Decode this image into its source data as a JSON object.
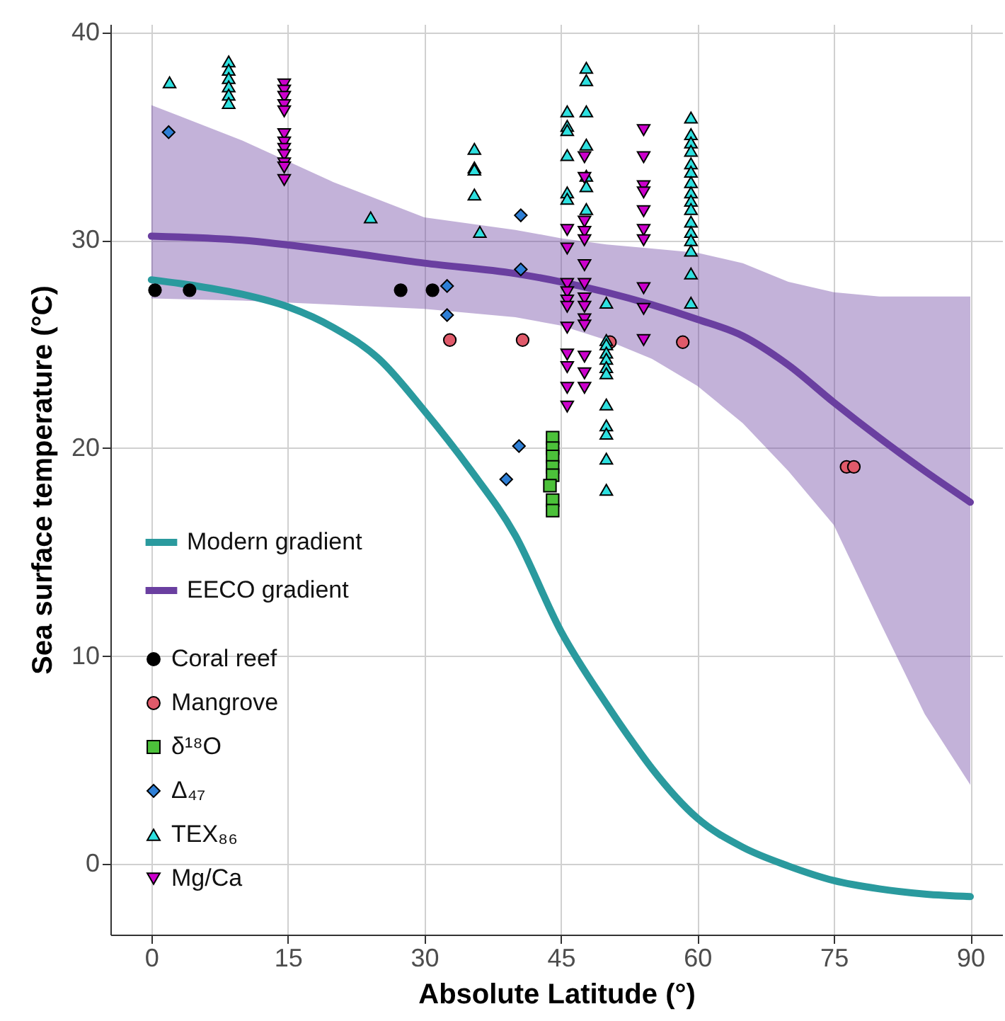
{
  "chart_data": {
    "type": "scatter",
    "xlabel": "Absolute Latitude (°)",
    "ylabel": "Sea surface temperature (°C)",
    "xlim": [
      -4.5,
      93.5
    ],
    "ylim": [
      -3.4,
      40.4
    ],
    "xticks": [
      0,
      15,
      30,
      45,
      60,
      75,
      90
    ],
    "yticks": [
      0,
      10,
      20,
      30,
      40
    ],
    "grid": true,
    "legend": "left",
    "series": [
      {
        "name": "Modern gradient",
        "type": "line",
        "color": "#2a9a9e",
        "x": [
          0,
          5,
          10,
          15,
          20,
          25,
          30,
          35,
          40,
          45,
          50,
          52.5,
          55,
          60,
          65,
          70,
          75,
          80,
          85,
          90
        ],
        "values": [
          28.1,
          27.8,
          27.4,
          26.8,
          25.8,
          24.3,
          21.8,
          19.0,
          15.8,
          11.2,
          7.7,
          6.1,
          4.6,
          2.2,
          0.8,
          -0.1,
          -0.8,
          -1.2,
          -1.45,
          -1.57
        ]
      },
      {
        "name": "EECO gradient",
        "type": "line",
        "color": "#6a3fa0",
        "x": [
          0,
          10,
          20,
          30,
          40,
          45,
          50,
          55,
          60,
          65,
          70,
          75,
          80,
          85,
          90
        ],
        "values": [
          30.2,
          30.0,
          29.5,
          28.9,
          28.4,
          28.0,
          27.5,
          26.9,
          26.2,
          25.4,
          24.0,
          22.2,
          20.5,
          18.9,
          17.4
        ],
        "upper": [
          36.5,
          34.8,
          32.8,
          31.1,
          30.5,
          30.1,
          29.8,
          29.6,
          29.4,
          28.9,
          28.0,
          27.5,
          27.3,
          27.3,
          27.3
        ],
        "lower": [
          27.2,
          27.1,
          26.9,
          26.7,
          26.3,
          25.9,
          25.2,
          24.3,
          23.0,
          21.2,
          18.9,
          16.3,
          11.7,
          7.2,
          3.8
        ]
      },
      {
        "name": "Coral reef",
        "type": "scatter",
        "marker": "circle",
        "color": "#000000",
        "x": [
          0.4,
          4.2,
          27.4,
          30.9
        ],
        "values": [
          27.6,
          27.6,
          27.6,
          27.6
        ]
      },
      {
        "name": "Mangrove",
        "type": "scatter",
        "marker": "circle",
        "color": "#e05a6a",
        "x": [
          32.8,
          40.8,
          50.4,
          58.4,
          76.4,
          77.2
        ],
        "values": [
          25.2,
          25.2,
          25.1,
          25.1,
          19.1,
          19.1
        ]
      },
      {
        "name": "δ¹⁸O",
        "type": "scatter",
        "marker": "square",
        "color": "#4cc13a",
        "x": [
          44.1,
          44.1,
          44.1,
          44.1,
          44.1,
          43.8,
          44.1,
          44.1
        ],
        "values": [
          20.5,
          20.0,
          19.6,
          19.1,
          18.7,
          18.2,
          17.5,
          17.0
        ]
      },
      {
        "name": "Δ₄₇",
        "type": "scatter",
        "marker": "diamond",
        "color": "#2e7fd6",
        "x": [
          1.9,
          32.5,
          32.5,
          40.6,
          40.6,
          40.4,
          39.0
        ],
        "values": [
          35.2,
          27.8,
          26.4,
          31.2,
          28.6,
          20.1,
          18.5
        ]
      },
      {
        "name": "TEX₈₆",
        "type": "scatter",
        "marker": "triangle",
        "color": "#2ee0e0",
        "x": [
          2.0,
          8.5,
          8.5,
          8.5,
          8.5,
          8.5,
          8.5,
          24.1,
          35.5,
          35.5,
          35.5,
          35.5,
          36.1,
          45.7,
          45.7,
          45.7,
          45.7,
          45.7,
          45.7,
          47.8,
          47.8,
          47.8,
          47.8,
          47.8,
          47.8,
          47.8,
          50.0,
          50.0,
          50.0,
          50.0,
          50.0,
          50.0,
          50.0,
          50.0,
          50.0,
          50.0,
          50.0,
          50.0,
          59.3,
          59.3,
          59.3,
          59.3,
          59.3,
          59.3,
          59.3,
          59.3,
          59.3,
          59.3,
          59.3,
          59.3,
          59.3,
          59.3,
          59.3,
          59.3
        ],
        "values": [
          37.6,
          38.6,
          38.2,
          37.8,
          37.4,
          37.0,
          36.6,
          31.1,
          34.4,
          33.5,
          33.4,
          32.2,
          30.4,
          36.2,
          35.5,
          35.3,
          34.1,
          32.3,
          32.0,
          38.3,
          37.7,
          36.2,
          34.6,
          33.1,
          32.6,
          31.5,
          27.0,
          25.2,
          25.0,
          24.6,
          24.3,
          23.9,
          23.6,
          22.1,
          21.1,
          20.7,
          19.5,
          18.0,
          35.9,
          35.1,
          34.7,
          34.3,
          33.7,
          33.3,
          32.8,
          32.3,
          31.9,
          31.5,
          30.9,
          30.4,
          30.0,
          29.5,
          28.4,
          27.0
        ]
      },
      {
        "name": "Mg/Ca",
        "type": "scatter",
        "marker": "triangle-down",
        "color": "#cc00cc",
        "x": [
          14.6,
          14.6,
          14.6,
          14.6,
          14.6,
          14.6,
          14.6,
          14.6,
          14.6,
          14.6,
          14.6,
          14.6,
          45.7,
          45.7,
          45.7,
          45.7,
          45.7,
          45.7,
          45.7,
          45.7,
          45.7,
          45.7,
          45.7,
          47.6,
          47.6,
          47.6,
          47.6,
          47.6,
          47.6,
          47.6,
          47.6,
          47.6,
          47.6,
          47.6,
          47.6,
          47.6,
          47.6,
          54.1,
          54.1,
          54.1,
          54.1,
          54.1,
          54.1,
          54.1,
          54.1,
          54.1,
          54.1
        ],
        "values": [
          37.5,
          37.2,
          36.9,
          36.5,
          36.2,
          35.1,
          34.7,
          34.4,
          34.1,
          33.7,
          33.5,
          32.9,
          30.5,
          29.6,
          27.9,
          27.5,
          27.1,
          26.8,
          25.8,
          24.5,
          23.9,
          22.9,
          22.0,
          34.0,
          33.0,
          30.9,
          30.4,
          30.0,
          28.8,
          27.9,
          27.2,
          26.8,
          26.2,
          25.9,
          24.4,
          23.6,
          22.9,
          35.3,
          34.0,
          32.6,
          32.3,
          31.4,
          30.5,
          30.0,
          27.7,
          26.7,
          25.2
        ]
      }
    ]
  }
}
